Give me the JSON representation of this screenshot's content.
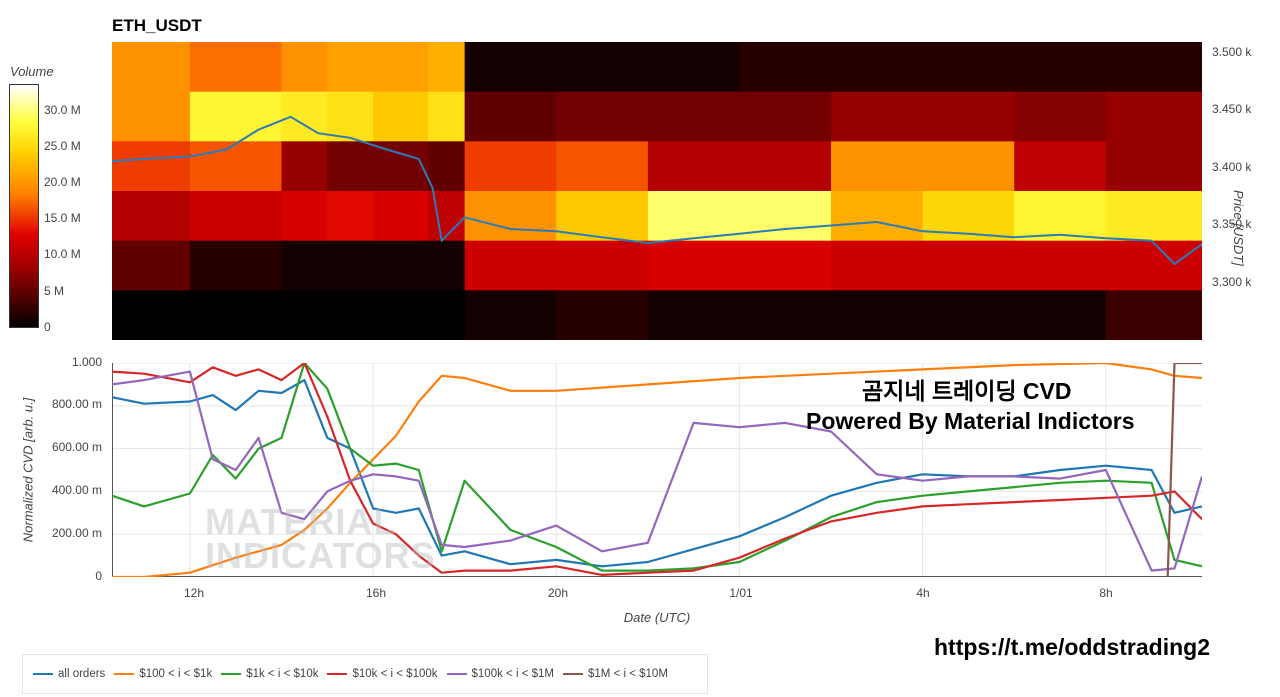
{
  "header": {
    "symbol": "ETH_USDT"
  },
  "colorbar": {
    "title": "Volume",
    "ticks": [
      "30.0 M",
      "25.0 M",
      "20.0 M",
      "15.0 M",
      "10.0 M",
      "5 M",
      "0"
    ]
  },
  "price_axis": {
    "label": "Price [USDT]",
    "ticks": [
      "3.500 k",
      "3.450 k",
      "3.400 k",
      "3.350 k",
      "3.300 k"
    ]
  },
  "cvd_axis": {
    "label": "Normalized CVD [arb. u.]",
    "ticks": [
      "1.000",
      "800.00 m",
      "600.00 m",
      "400.00 m",
      "200.00 m",
      "0"
    ]
  },
  "x_axis": {
    "label": "Date (UTC)",
    "ticks": [
      "12h",
      "16h",
      "20h",
      "1/01",
      "4h",
      "8h"
    ]
  },
  "overlay": {
    "line1": "곰지네 트레이딩 CVD",
    "line2": "Powered By Material Indictors",
    "url": "https://t.me/oddstrading2",
    "watermark_line1": "MATERIAL",
    "watermark_line2": "INDICATORS"
  },
  "legend": [
    {
      "label": "all orders",
      "color": "#1f77b4"
    },
    {
      "label": "$100 < i < $1k",
      "color": "#ff7f0e"
    },
    {
      "label": "$1k < i < $10k",
      "color": "#2ca02c"
    },
    {
      "label": "$10k < i < $100k",
      "color": "#d62728"
    },
    {
      "label": "$100k < i < $1M",
      "color": "#9467bd"
    },
    {
      "label": "$1M < i < $10M",
      "color": "#8c564b"
    }
  ],
  "chart_data": [
    {
      "type": "heatmap",
      "title": "ETH_USDT",
      "x": [
        10.3,
        12,
        14,
        15,
        16,
        17.2,
        18,
        20,
        22,
        24,
        26,
        28,
        30,
        32,
        34.1
      ],
      "price_ticks": [
        3500,
        3450,
        3400,
        3350,
        3300
      ],
      "price_bands": [
        3475,
        3425,
        3375,
        3325,
        3275
      ],
      "ylim": [
        3255,
        3510
      ],
      "volume_range": [
        0,
        34000000
      ],
      "volume_M": [
        [
          20,
          18,
          20,
          21,
          21,
          22,
          1,
          1,
          1,
          2,
          2,
          2,
          2,
          2,
          2
        ],
        [
          20,
          28,
          27,
          26,
          24,
          26,
          5,
          6,
          6,
          6,
          8,
          8,
          7,
          8,
          5
        ],
        [
          16,
          17,
          8,
          6,
          6,
          5,
          16,
          17,
          10,
          10,
          20,
          20,
          11,
          8,
          6
        ],
        [
          10,
          12,
          13,
          14,
          13,
          11,
          20,
          24,
          30,
          30,
          22,
          25,
          28,
          27,
          24
        ],
        [
          5,
          2,
          1,
          1,
          1,
          1,
          12,
          12,
          13,
          13,
          12,
          12,
          12,
          12,
          12
        ],
        [
          0,
          0,
          0,
          0,
          0,
          0,
          1,
          2,
          1,
          1,
          1,
          1,
          1,
          3,
          3
        ]
      ],
      "price_line": {
        "name": "",
        "x": [
          10.3,
          11,
          12,
          12.8,
          13.5,
          14.2,
          14.8,
          15.5,
          16.3,
          17,
          17.3,
          17.5,
          18,
          19,
          20,
          21,
          22,
          23,
          24,
          25,
          26,
          27,
          28,
          29,
          30,
          31,
          32,
          33,
          33.5,
          34.1
        ],
        "y": [
          3408,
          3410,
          3412,
          3418,
          3435,
          3446,
          3432,
          3428,
          3418,
          3410,
          3385,
          3340,
          3360,
          3350,
          3348,
          3343,
          3338,
          3342,
          3346,
          3350,
          3353,
          3356,
          3348,
          3346,
          3343,
          3345,
          3342,
          3340,
          3320,
          3337
        ]
      }
    },
    {
      "type": "line",
      "title": "곰지네 트레이딩 CVD",
      "xlabel": "Date (UTC)",
      "ylabel": "Normalized CVD [arb. u.]",
      "x_unit": "hours since 00:00 UTC of first day (24 = 1/01 00:00)",
      "xlim": [
        10.3,
        34.1
      ],
      "ylim": [
        0,
        1
      ],
      "series": [
        {
          "name": "all orders",
          "x": [
            10.3,
            11,
            12,
            12.5,
            13,
            13.5,
            14,
            14.5,
            15,
            15.5,
            16,
            16.5,
            17,
            17.5,
            18,
            19,
            20,
            21,
            22,
            23,
            24,
            25,
            26,
            27,
            28,
            29,
            30,
            31,
            32,
            33,
            33.5,
            34.1
          ],
          "y": [
            0.84,
            0.81,
            0.82,
            0.85,
            0.78,
            0.87,
            0.86,
            0.92,
            0.65,
            0.6,
            0.32,
            0.3,
            0.32,
            0.1,
            0.12,
            0.06,
            0.08,
            0.05,
            0.07,
            0.13,
            0.19,
            0.28,
            0.38,
            0.44,
            0.48,
            0.47,
            0.47,
            0.5,
            0.52,
            0.5,
            0.3,
            0.33
          ]
        },
        {
          "name": "$100 < i < $1k",
          "x": [
            10.3,
            11,
            12,
            13,
            14,
            14.5,
            15,
            15.5,
            16,
            16.5,
            17,
            17.5,
            18,
            19,
            20,
            22,
            24,
            26,
            28,
            30,
            32,
            33,
            33.5,
            34.1
          ],
          "y": [
            0.0,
            0.0,
            0.02,
            0.09,
            0.15,
            0.22,
            0.32,
            0.44,
            0.55,
            0.66,
            0.82,
            0.94,
            0.93,
            0.87,
            0.87,
            0.9,
            0.93,
            0.95,
            0.97,
            0.99,
            1.0,
            0.97,
            0.94,
            0.93
          ]
        },
        {
          "name": "$1k < i < $10k",
          "x": [
            10.3,
            11,
            12,
            12.5,
            13,
            13.5,
            14,
            14.5,
            15,
            15.5,
            16,
            16.5,
            17,
            17.5,
            18,
            19,
            20,
            21,
            22,
            23,
            24,
            25,
            26,
            27,
            28,
            29,
            30,
            31,
            32,
            33,
            33.5,
            34.1
          ],
          "y": [
            0.38,
            0.33,
            0.39,
            0.57,
            0.46,
            0.6,
            0.65,
            1.0,
            0.88,
            0.6,
            0.52,
            0.53,
            0.5,
            0.12,
            0.45,
            0.22,
            0.14,
            0.03,
            0.03,
            0.04,
            0.07,
            0.17,
            0.28,
            0.35,
            0.38,
            0.4,
            0.42,
            0.44,
            0.45,
            0.44,
            0.08,
            0.05
          ]
        },
        {
          "name": "$10k < i < $100k",
          "x": [
            10.3,
            11,
            12,
            12.5,
            13,
            13.5,
            14,
            14.5,
            15,
            15.5,
            16,
            16.5,
            17,
            17.5,
            18,
            19,
            20,
            21,
            22,
            23,
            24,
            25,
            26,
            27,
            28,
            29,
            30,
            31,
            32,
            33,
            33.5,
            34.1
          ],
          "y": [
            0.96,
            0.95,
            0.91,
            0.98,
            0.94,
            0.97,
            0.92,
            1.0,
            0.75,
            0.45,
            0.25,
            0.2,
            0.1,
            0.02,
            0.03,
            0.03,
            0.05,
            0.01,
            0.02,
            0.03,
            0.09,
            0.18,
            0.26,
            0.3,
            0.33,
            0.34,
            0.35,
            0.36,
            0.37,
            0.38,
            0.4,
            0.27
          ]
        },
        {
          "name": "$100k < i < $1M",
          "x": [
            10.3,
            11,
            12,
            12.5,
            13,
            13.5,
            14,
            14.5,
            15,
            15.5,
            16,
            16.5,
            17,
            17.5,
            18,
            19,
            20,
            21,
            22,
            23,
            24,
            25,
            26,
            27,
            28,
            29,
            30,
            31,
            32,
            33,
            33.5,
            34.1
          ],
          "y": [
            0.9,
            0.92,
            0.96,
            0.55,
            0.5,
            0.65,
            0.3,
            0.27,
            0.4,
            0.45,
            0.48,
            0.47,
            0.45,
            0.15,
            0.14,
            0.17,
            0.24,
            0.12,
            0.16,
            0.72,
            0.7,
            0.72,
            0.68,
            0.48,
            0.45,
            0.47,
            0.47,
            0.46,
            0.5,
            0.03,
            0.04,
            0.47
          ]
        },
        {
          "name": "$1M < i < $10M",
          "x": [
            10.3,
            33.2,
            33.35,
            33.5,
            34.1
          ],
          "y": [
            null,
            null,
            0.0,
            1.0,
            1.0
          ]
        }
      ]
    }
  ]
}
